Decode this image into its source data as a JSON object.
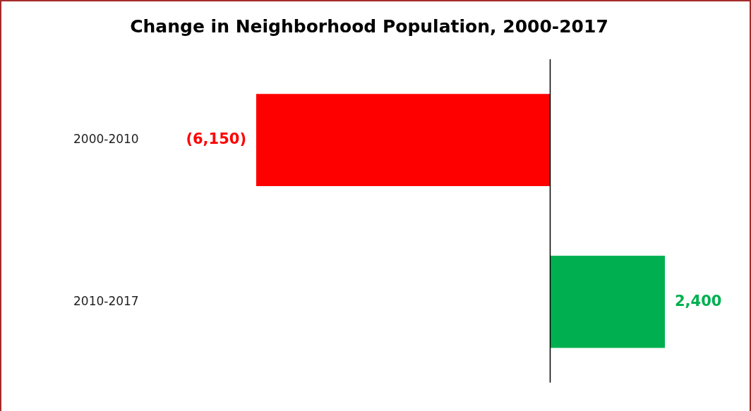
{
  "chart_data": {
    "type": "bar",
    "orientation": "horizontal",
    "title": "Change in Neighborhood Population, 2000-2017",
    "categories": [
      "2000-2010",
      "2010-2017"
    ],
    "values": [
      -6150,
      2400
    ],
    "colors": [
      "#ff0000",
      "#00b050"
    ],
    "value_labels": [
      "(6,150)",
      "2,400"
    ],
    "grid": false,
    "legend": false
  }
}
